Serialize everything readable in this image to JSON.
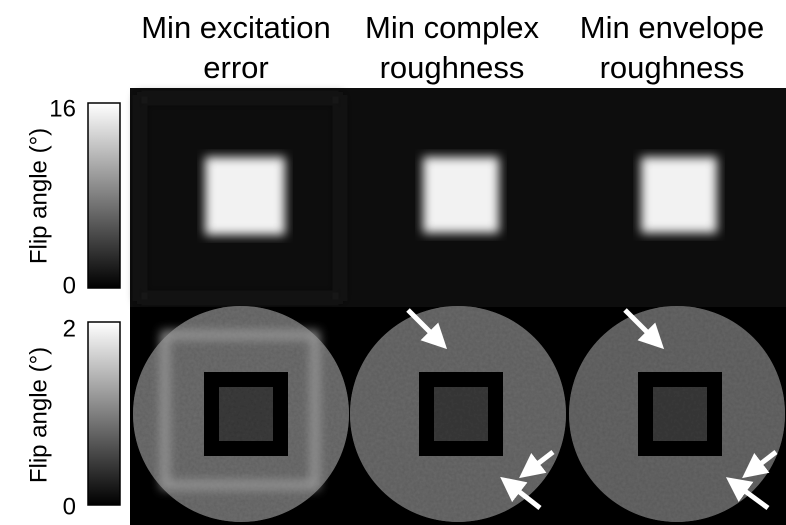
{
  "header": {
    "titles": [
      {
        "line1": "Min excitation",
        "line2": "error"
      },
      {
        "line1": "Min complex",
        "line2": "roughness"
      },
      {
        "line1": "Min envelope",
        "line2": "roughness"
      }
    ]
  },
  "colorbars": [
    {
      "label": "Flip angle (°)",
      "max": 16,
      "min": 0
    },
    {
      "label": "Flip angle (°)",
      "max": 2,
      "min": 0
    }
  ]
}
